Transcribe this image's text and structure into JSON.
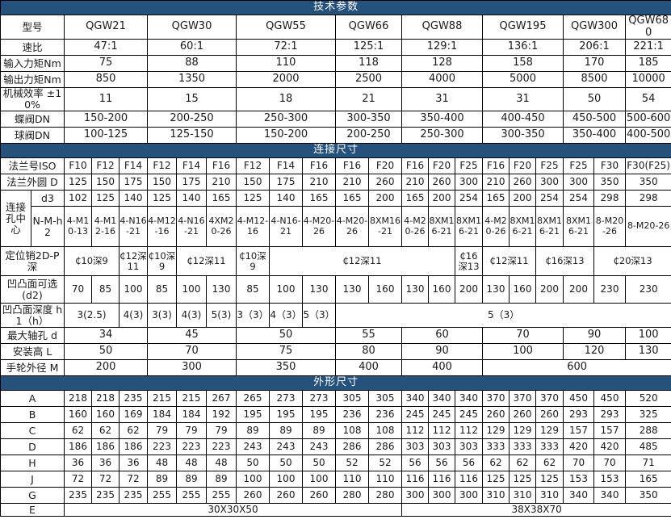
{
  "accent_color": "#25527d",
  "grid_color": "#000000",
  "text_color": "#1a1a1a",
  "table": {
    "rows": [
      {
        "type": "section",
        "title": "技术参数"
      },
      {
        "type": "data",
        "label": "型号",
        "cells": [
          {
            "t": "QGW21",
            "s": 3
          },
          {
            "t": "QGW30",
            "s": 3
          },
          {
            "t": "QGW55",
            "s": 3
          },
          {
            "t": "QGW66",
            "s": 2
          },
          {
            "t": "QGW88",
            "s": 3
          },
          {
            "t": "QGW195",
            "s": 3
          },
          {
            "t": "QGW300",
            "s": 2
          },
          {
            "t": "QGW680",
            "s": 1
          }
        ]
      },
      {
        "type": "data",
        "label": "速比",
        "cells": [
          {
            "t": "47:1",
            "s": 3
          },
          {
            "t": "60:1",
            "s": 3
          },
          {
            "t": "72:1",
            "s": 3
          },
          {
            "t": "125:1",
            "s": 2
          },
          {
            "t": "129:1",
            "s": 3
          },
          {
            "t": "136:1",
            "s": 3
          },
          {
            "t": "206:1",
            "s": 2
          },
          {
            "t": "221:1",
            "s": 1
          }
        ]
      },
      {
        "type": "data",
        "label": "输入力矩Nm",
        "cells": [
          {
            "t": "75",
            "s": 3
          },
          {
            "t": "88",
            "s": 3
          },
          {
            "t": "110",
            "s": 3
          },
          {
            "t": "118",
            "s": 2
          },
          {
            "t": "128",
            "s": 3
          },
          {
            "t": "158",
            "s": 3
          },
          {
            "t": "170",
            "s": 2
          },
          {
            "t": "185",
            "s": 1
          }
        ]
      },
      {
        "type": "data",
        "label": "输出力矩Nm",
        "cells": [
          {
            "t": "850",
            "s": 3
          },
          {
            "t": "1350",
            "s": 3
          },
          {
            "t": "2000",
            "s": 3
          },
          {
            "t": "2500",
            "s": 2
          },
          {
            "t": "4000",
            "s": 3
          },
          {
            "t": "5000",
            "s": 3
          },
          {
            "t": "8500",
            "s": 2
          },
          {
            "t": "10000",
            "s": 1
          }
        ]
      },
      {
        "type": "data",
        "label": "机械效率 ±10%",
        "cells": [
          {
            "t": "11",
            "s": 3
          },
          {
            "t": "15",
            "s": 3
          },
          {
            "t": "18",
            "s": 3
          },
          {
            "t": "21",
            "s": 2
          },
          {
            "t": "31",
            "s": 3
          },
          {
            "t": "31",
            "s": 3
          },
          {
            "t": "50",
            "s": 2
          },
          {
            "t": "54",
            "s": 1
          }
        ]
      },
      {
        "type": "data",
        "label": "蝶阀DN",
        "cells": [
          {
            "t": "150-200",
            "s": 3
          },
          {
            "t": "200-250",
            "s": 3
          },
          {
            "t": "250-300",
            "s": 3
          },
          {
            "t": "300-350",
            "s": 2
          },
          {
            "t": "350-400",
            "s": 3
          },
          {
            "t": "400-450",
            "s": 3
          },
          {
            "t": "450-500",
            "s": 2
          },
          {
            "t": "500-600",
            "s": 1
          }
        ]
      },
      {
        "type": "data",
        "label": "球阀DN",
        "cells": [
          {
            "t": "100-125",
            "s": 3
          },
          {
            "t": "125-150",
            "s": 3
          },
          {
            "t": "150-200",
            "s": 3
          },
          {
            "t": "200-250",
            "s": 2
          },
          {
            "t": "250-300",
            "s": 3
          },
          {
            "t": "300-350",
            "s": 3
          },
          {
            "t": "350-400",
            "s": 2
          },
          {
            "t": "400-500",
            "s": 1
          }
        ]
      },
      {
        "type": "section",
        "title": "连接尺寸"
      },
      {
        "type": "data",
        "label": "法兰号ISO",
        "cells": [
          "F10",
          "F12",
          "F14",
          "F12",
          "F14",
          "F16",
          "F12",
          "F14",
          "F16",
          "F16",
          "F20",
          "F16",
          "F20",
          "F25",
          "F16",
          "F20",
          "F25",
          "F25",
          "F30",
          "F30(F25)"
        ]
      },
      {
        "type": "data",
        "label": "法兰外圆 D",
        "cells": [
          "125",
          "150",
          "175",
          "150",
          "175",
          "210",
          "150",
          "175",
          "210",
          "210",
          "260",
          "210",
          "260",
          "300",
          "210",
          "260",
          "300",
          "300",
          "350",
          "350"
        ]
      },
      {
        "type": "data",
        "label": "d3",
        "label_span": 1,
        "group_label": {
          "text": "连接孔中心",
          "rowspan": 2
        },
        "cells": [
          "102",
          "125",
          "140",
          "125",
          "140",
          "165",
          "125",
          "140",
          "165",
          "165",
          "200",
          "165",
          "200",
          "254",
          "165",
          "200",
          "254",
          "254",
          "298",
          "298"
        ]
      },
      {
        "type": "data",
        "label": "N-M-h2",
        "label_span": 1,
        "cells": [
          "4-M10-13",
          "4-M12-16",
          "4-N16-21",
          "4-M12-16",
          "4-N16-21",
          "4XM20-26",
          "4-M12-16",
          "4-N16-21",
          "4-M20-26",
          "4-M20-26",
          "8XM16-21",
          "4-M20-26",
          "8XM16-21",
          "8XM16-21",
          "4-M20-26",
          "8XM16-21",
          "8XM16-21",
          "8XM16-21",
          "8-M20-26",
          "8-M20-26"
        ]
      },
      {
        "type": "data",
        "label": "定位销2D-P深",
        "cells": [
          {
            "t": "₵10深9",
            "s": 2
          },
          {
            "t": "₵12深11",
            "s": 1
          },
          {
            "t": "₵10深9",
            "s": 1
          },
          {
            "t": "₵12深11",
            "s": 2
          },
          {
            "t": "₵10深9",
            "s": 1
          },
          {
            "t": "₵12深11",
            "s": 6
          },
          {
            "t": "₵16深13",
            "s": 1
          },
          {
            "t": "₵12深11",
            "s": 2
          },
          {
            "t": "₵16深13",
            "s": 2
          },
          {
            "t": "₵20深13",
            "s": 2
          }
        ]
      },
      {
        "type": "data",
        "label": "凹凸面可选 (d2)",
        "cells": [
          "70",
          "85",
          "100",
          "85",
          "100",
          "130",
          "85",
          "100",
          "130",
          "130",
          "160",
          "130",
          "160",
          "200",
          "130",
          "160",
          "200",
          "200",
          "230",
          "230"
        ]
      },
      {
        "type": "data",
        "label": "凹凸面深度 h1（h）",
        "cells": [
          {
            "t": "3(2.5)",
            "s": 2
          },
          {
            "t": "4(3)",
            "s": 1
          },
          {
            "t": "3(3)",
            "s": 1
          },
          {
            "t": "4(3)",
            "s": 1
          },
          {
            "t": "5(3)",
            "s": 1
          },
          {
            "t": "3（3）",
            "s": 1
          },
          {
            "t": "4（3）",
            "s": 1
          },
          {
            "t": "5（3）",
            "s": 1
          },
          {
            "t": "5（3）",
            "s": 11
          }
        ]
      },
      {
        "type": "data",
        "label": "最大轴孔 d",
        "cells": [
          {
            "t": "34",
            "s": 3
          },
          {
            "t": "45",
            "s": 3
          },
          {
            "t": "50",
            "s": 3
          },
          {
            "t": "55",
            "s": 2
          },
          {
            "t": "60",
            "s": 3
          },
          {
            "t": "70",
            "s": 3
          },
          {
            "t": "90",
            "s": 2
          },
          {
            "t": "100",
            "s": 1
          }
        ]
      },
      {
        "type": "data",
        "label": "安装高 L",
        "cells": [
          {
            "t": "50",
            "s": 3
          },
          {
            "t": "70",
            "s": 3
          },
          {
            "t": "75",
            "s": 3
          },
          {
            "t": "80",
            "s": 2
          },
          {
            "t": "90",
            "s": 3
          },
          {
            "t": "100",
            "s": 3
          },
          {
            "t": "120",
            "s": 2
          },
          {
            "t": "130",
            "s": 1
          }
        ]
      },
      {
        "type": "data",
        "label": "手轮外径 M",
        "cells": [
          {
            "t": "200",
            "s": 3
          },
          {
            "t": "300",
            "s": 3
          },
          {
            "t": "350",
            "s": 3
          },
          {
            "t": "400",
            "s": 2
          },
          {
            "t": "400",
            "s": 3
          },
          {
            "t": "600",
            "s": 6
          }
        ]
      },
      {
        "type": "section",
        "title": "外形尺寸"
      },
      {
        "type": "data",
        "label": "A",
        "cells": [
          "218",
          "218",
          "235",
          "215",
          "215",
          "267",
          "265",
          "273",
          "273",
          "305",
          "305",
          "340",
          "340",
          "340",
          "370",
          "370",
          "370",
          "450",
          "450",
          "520"
        ]
      },
      {
        "type": "data",
        "label": "B",
        "cells": [
          "160",
          "160",
          "169",
          "184",
          "184",
          "192",
          "195",
          "195",
          "195",
          "236",
          "236",
          "245",
          "245",
          "245",
          "260",
          "260",
          "260",
          "293",
          "293",
          "325"
        ]
      },
      {
        "type": "data",
        "label": "C",
        "cells": [
          "62",
          "62",
          "62",
          "79",
          "79",
          "79",
          "89",
          "89",
          "89",
          "108",
          "108",
          "112",
          "112",
          "112",
          "129",
          "129",
          "129",
          "157",
          "157",
          "288"
        ]
      },
      {
        "type": "data",
        "label": "D",
        "cells": [
          "186",
          "186",
          "186",
          "223",
          "223",
          "223",
          "243",
          "243",
          "243",
          "286",
          "286",
          "303",
          "303",
          "303",
          "333",
          "333",
          "333",
          "420",
          "420",
          "485"
        ]
      },
      {
        "type": "data",
        "label": "H",
        "cells": [
          "36",
          "36",
          "36",
          "48",
          "48",
          "48",
          "50",
          "50",
          "50",
          "52",
          "52",
          "56",
          "56",
          "56",
          "62",
          "62",
          "62",
          "70",
          "70",
          "71"
        ]
      },
      {
        "type": "data",
        "label": "J",
        "cells": [
          "72",
          "72",
          "72",
          "89",
          "89",
          "89",
          "100",
          "100",
          "100",
          "110",
          "110",
          "116",
          "116",
          "116",
          "125",
          "125",
          "125",
          "153",
          "153",
          "165"
        ]
      },
      {
        "type": "data",
        "label": "G",
        "cells": [
          "235",
          "235",
          "235",
          "255",
          "255",
          "255",
          "260",
          "260",
          "260",
          "280",
          "280",
          "300",
          "300",
          "300",
          "310",
          "310",
          "310",
          "340",
          "340",
          "350"
        ]
      },
      {
        "type": "data",
        "label": "E",
        "cells": [
          {
            "t": "30X30X50",
            "s": 11
          },
          {
            "t": "38X38X70",
            "s": 9
          }
        ]
      }
    ]
  }
}
